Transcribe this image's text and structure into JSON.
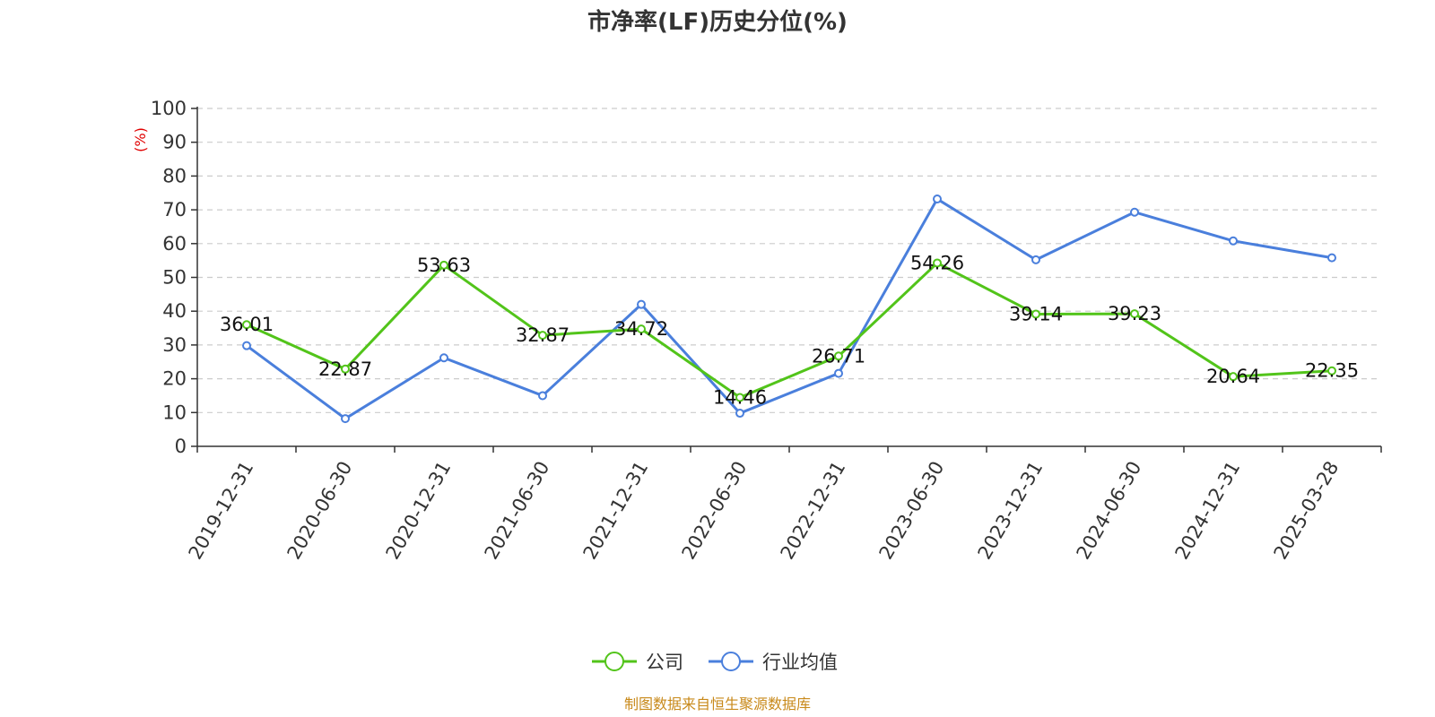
{
  "chart_data": {
    "type": "line",
    "title": "市净率(LF)历史分位(%)",
    "ylabel": "(%)",
    "xlabel": "",
    "ylim": [
      0,
      100
    ],
    "yticks": [
      0,
      10,
      20,
      30,
      40,
      50,
      60,
      70,
      80,
      90,
      100
    ],
    "grid": true,
    "legend_position": "bottom-center",
    "categories": [
      "2019-12-31",
      "2020-06-30",
      "2020-12-31",
      "2021-06-30",
      "2021-12-31",
      "2022-06-30",
      "2022-12-31",
      "2023-06-30",
      "2023-12-31",
      "2024-06-30",
      "2024-12-31",
      "2025-03-28"
    ],
    "series": [
      {
        "name": "公司",
        "color": "#52c41a",
        "values": [
          36.01,
          22.87,
          53.63,
          32.87,
          34.72,
          14.46,
          26.71,
          54.26,
          39.14,
          39.23,
          20.64,
          22.35
        ],
        "labels_shown": true
      },
      {
        "name": "行业均值",
        "color": "#4a7fdc",
        "values": [
          29.8,
          8.2,
          26.2,
          15.0,
          42.0,
          9.8,
          21.6,
          73.2,
          55.2,
          69.3,
          60.8,
          55.8
        ],
        "labels_shown": false
      }
    ],
    "source": "制图数据来自恒生聚源数据库"
  }
}
